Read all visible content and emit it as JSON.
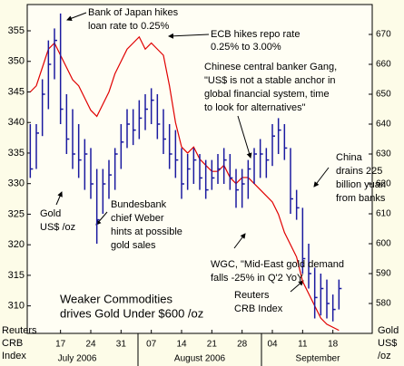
{
  "chart_data": {
    "type": "ohlc_line",
    "categories": [
      null,
      null,
      null,
      null,
      null,
      "17",
      null,
      null,
      null,
      null,
      "24",
      null,
      null,
      null,
      null,
      "31",
      null,
      null,
      null,
      null,
      "07",
      null,
      null,
      null,
      null,
      "14",
      null,
      null,
      null,
      null,
      "21",
      null,
      null,
      null,
      null,
      "28",
      null,
      null,
      null,
      null,
      "04",
      null,
      null,
      null,
      null,
      "11",
      null,
      null,
      null,
      null,
      "18",
      null,
      null,
      null,
      null,
      null,
      null
    ],
    "months": [
      "July 2006",
      "August 2006",
      "September"
    ],
    "ylim": [
      305.5,
      359.3
    ],
    "yticks": [
      310,
      315,
      320,
      325,
      330,
      335,
      340,
      345,
      350,
      355
    ],
    "y2lim": [
      570,
      680
    ],
    "y2ticks": [
      580,
      590,
      600,
      610,
      620,
      630,
      640,
      650,
      660,
      670
    ],
    "y_label_lines": [
      "Reuters",
      "CRB",
      "Index"
    ],
    "y2_label_lines": [
      "Gold",
      "US$",
      "/oz"
    ],
    "series": [
      {
        "label_lines": [
          "Reuters",
          "CRB Index"
        ],
        "color": "#e00000",
        "kind": "line",
        "values": [
          345,
          346,
          349,
          352,
          353,
          351,
          349,
          347,
          346,
          344,
          342,
          341,
          343,
          345,
          348,
          350,
          352,
          353,
          354,
          352,
          353,
          352,
          351,
          346,
          340,
          336,
          335,
          336,
          334,
          333,
          332,
          332,
          333,
          331,
          330,
          331,
          331,
          330,
          329,
          328,
          327,
          325,
          322,
          320,
          318,
          314,
          312,
          310,
          308,
          307,
          306.5,
          306,
          null,
          null,
          null,
          null,
          null
        ]
      },
      {
        "label_lines": [
          "Gold",
          "US$ /oz"
        ],
        "color": "#1a1aa0",
        "kind": "ohlc",
        "axis": "y2",
        "high": [
          640,
          640,
          655,
          668,
          672,
          677,
          650,
          645,
          640,
          635,
          632,
          625,
          625,
          628,
          632,
          640,
          645,
          645,
          648,
          650,
          652,
          650,
          645,
          640,
          638,
          632,
          630,
          632,
          630,
          628,
          628,
          630,
          632,
          630,
          625,
          625,
          628,
          632,
          635,
          632,
          640,
          642,
          640,
          632,
          618,
          612,
          600,
          592,
          590,
          588,
          583,
          588,
          null,
          null,
          null,
          null,
          null
        ],
        "low": [
          622,
          625,
          636,
          645,
          655,
          640,
          630,
          625,
          622,
          618,
          615,
          600,
          610,
          615,
          618,
          625,
          632,
          633,
          635,
          638,
          640,
          635,
          630,
          625,
          622,
          615,
          618,
          620,
          618,
          615,
          618,
          620,
          620,
          618,
          612,
          612,
          615,
          620,
          622,
          622,
          626,
          630,
          628,
          610,
          608,
          590,
          585,
          575,
          576,
          575,
          574,
          578,
          null,
          null,
          null,
          null,
          null
        ],
        "values": [
          625,
          637,
          650,
          660,
          668,
          645,
          635,
          630,
          628,
          630,
          620,
          608,
          620,
          623,
          630,
          634,
          640,
          638,
          642,
          645,
          648,
          640,
          635,
          630,
          628,
          620,
          625,
          628,
          622,
          618,
          622,
          625,
          628,
          622,
          618,
          620,
          625,
          630,
          630,
          628,
          636,
          638,
          632,
          615,
          612,
          595,
          590,
          582,
          585,
          580,
          578,
          585,
          null,
          null,
          null,
          null,
          null
        ]
      }
    ],
    "annotations": [
      {
        "lines": [
          "Bank of Japan hikes",
          "loan rate to 0.25%"
        ]
      },
      {
        "lines": [
          "ECB hikes repo rate",
          "0.25% to 3.00%"
        ]
      },
      {
        "lines": [
          "Chinese central banker Gang,",
          "\"US$ is not a stable anchor in",
          "global financial system, time",
          "to look for alternatives\""
        ]
      },
      {
        "lines": [
          "China",
          "drains 225",
          "billion yuan",
          "from banks"
        ]
      },
      {
        "lines": [
          "Bundesbank",
          "chief Weber",
          "hints at possible",
          "gold sales"
        ]
      },
      {
        "lines": [
          "WGC, \"Mid-East gold demand",
          "falls -25% in Q'2 YoY"
        ]
      },
      {
        "lines": [
          "Weaker Commodities",
          "drives Gold Under $600 /oz"
        ]
      }
    ]
  }
}
